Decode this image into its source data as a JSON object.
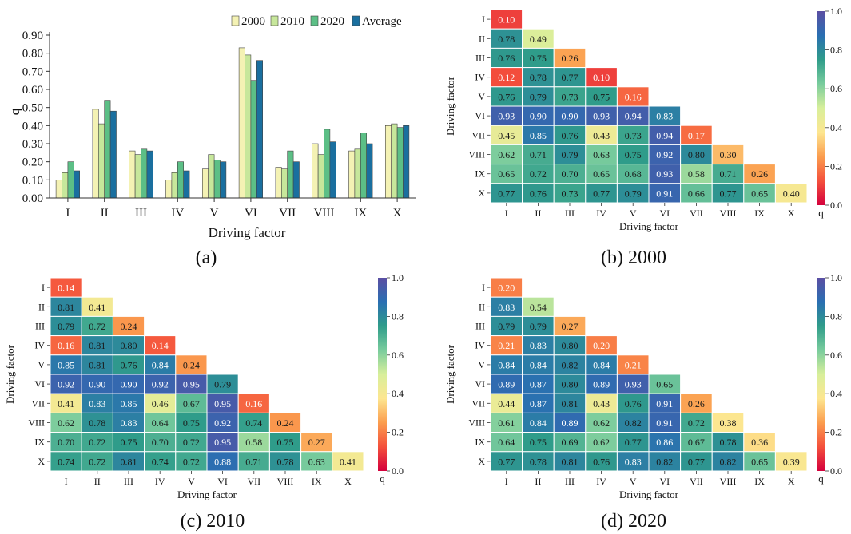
{
  "figure": {
    "panels": [
      {
        "label": "(a)"
      },
      {
        "label": "(b) 2000"
      },
      {
        "label": "(c) 2010"
      },
      {
        "label": "(d) 2020"
      }
    ]
  },
  "colors": {
    "y2000": "#f4f2b4",
    "y2010": "#c7e79b",
    "y2020": "#5cbf86",
    "average": "#1a6f9f",
    "colormap": [
      "#d4003c",
      "#f4503c",
      "#fb9d4e",
      "#fde690",
      "#d8ef9b",
      "#79cc9d",
      "#2f9c8a",
      "#2a6fb2",
      "#5b4ea3"
    ]
  },
  "chart_data": [
    {
      "type": "bar",
      "title": "",
      "xlabel": "Driving factor",
      "ylabel": "q",
      "ylim": [
        0,
        0.9
      ],
      "yticks": [
        "0.00",
        "0.10",
        "0.20",
        "0.30",
        "0.40",
        "0.50",
        "0.60",
        "0.70",
        "0.80",
        "0.90"
      ],
      "categories": [
        "I",
        "II",
        "III",
        "IV",
        "V",
        "VI",
        "VII",
        "VIII",
        "IX",
        "X"
      ],
      "legend": "top-right",
      "series": [
        {
          "name": "2000",
          "values": [
            0.1,
            0.49,
            0.26,
            0.1,
            0.16,
            0.83,
            0.17,
            0.3,
            0.26,
            0.4
          ]
        },
        {
          "name": "2010",
          "values": [
            0.14,
            0.41,
            0.24,
            0.14,
            0.24,
            0.79,
            0.16,
            0.24,
            0.27,
            0.41
          ]
        },
        {
          "name": "2020",
          "values": [
            0.2,
            0.54,
            0.27,
            0.2,
            0.21,
            0.65,
            0.26,
            0.38,
            0.36,
            0.39
          ]
        },
        {
          "name": "Average",
          "values": [
            0.15,
            0.48,
            0.26,
            0.15,
            0.2,
            0.76,
            0.2,
            0.31,
            0.3,
            0.4
          ]
        }
      ]
    },
    {
      "type": "heatmap",
      "title": "2000",
      "xlabel": "Driving factor",
      "ylabel": "Driving factor",
      "factors": [
        "I",
        "II",
        "III",
        "IV",
        "V",
        "VI",
        "VII",
        "VIII",
        "IX",
        "X"
      ],
      "colorbar_label": "q",
      "colorbar_range": [
        0.0,
        1.0
      ],
      "colorbar_ticks": [
        "0.0",
        "0.2",
        "0.4",
        "0.6",
        "0.8",
        "1.0"
      ],
      "rows": [
        [
          0.1
        ],
        [
          0.78,
          0.49
        ],
        [
          0.76,
          0.75,
          0.26
        ],
        [
          0.12,
          0.78,
          0.77,
          0.1
        ],
        [
          0.76,
          0.79,
          0.73,
          0.75,
          0.16
        ],
        [
          0.93,
          0.9,
          0.9,
          0.93,
          0.94,
          0.83
        ],
        [
          0.45,
          0.85,
          0.76,
          0.43,
          0.73,
          0.94,
          0.17
        ],
        [
          0.62,
          0.71,
          0.79,
          0.63,
          0.75,
          0.92,
          0.8,
          0.3
        ],
        [
          0.65,
          0.72,
          0.7,
          0.65,
          0.68,
          0.93,
          0.58,
          0.71,
          0.26
        ],
        [
          0.77,
          0.76,
          0.73,
          0.77,
          0.79,
          0.91,
          0.66,
          0.77,
          0.65,
          0.4
        ]
      ]
    },
    {
      "type": "heatmap",
      "title": "2010",
      "xlabel": "Driving factor",
      "ylabel": "Driving factor",
      "factors": [
        "I",
        "II",
        "III",
        "IV",
        "V",
        "VI",
        "VII",
        "VIII",
        "IX",
        "X"
      ],
      "colorbar_label": "q",
      "colorbar_range": [
        0.0,
        1.0
      ],
      "colorbar_ticks": [
        "0.0",
        "0.2",
        "0.4",
        "0.6",
        "0.8",
        "1.0"
      ],
      "rows": [
        [
          0.14
        ],
        [
          0.81,
          0.41
        ],
        [
          0.79,
          0.72,
          0.24
        ],
        [
          0.16,
          0.81,
          0.8,
          0.14
        ],
        [
          0.85,
          0.81,
          0.76,
          0.84,
          0.24
        ],
        [
          0.92,
          0.9,
          0.9,
          0.92,
          0.95,
          0.79
        ],
        [
          0.41,
          0.83,
          0.85,
          0.46,
          0.67,
          0.95,
          0.16
        ],
        [
          0.62,
          0.78,
          0.83,
          0.64,
          0.75,
          0.92,
          0.74,
          0.24
        ],
        [
          0.7,
          0.72,
          0.75,
          0.7,
          0.72,
          0.95,
          0.58,
          0.75,
          0.27
        ],
        [
          0.74,
          0.72,
          0.81,
          0.74,
          0.72,
          0.88,
          0.71,
          0.78,
          0.63,
          0.41
        ]
      ]
    },
    {
      "type": "heatmap",
      "title": "2020",
      "xlabel": "Driving factor",
      "ylabel": "Driving factor",
      "factors": [
        "I",
        "II",
        "III",
        "IV",
        "V",
        "VI",
        "VII",
        "VIII",
        "IX",
        "X"
      ],
      "colorbar_label": "q",
      "colorbar_range": [
        0.0,
        1.0
      ],
      "colorbar_ticks": [
        "0.0",
        "0.2",
        "0.4",
        "0.6",
        "0.8",
        "1.0"
      ],
      "rows": [
        [
          0.2
        ],
        [
          0.83,
          0.54
        ],
        [
          0.79,
          0.79,
          0.27
        ],
        [
          0.21,
          0.83,
          0.8,
          0.2
        ],
        [
          0.84,
          0.84,
          0.82,
          0.84,
          0.21
        ],
        [
          0.89,
          0.87,
          0.8,
          0.89,
          0.93,
          0.65
        ],
        [
          0.44,
          0.87,
          0.81,
          0.43,
          0.76,
          0.91,
          0.26
        ],
        [
          0.61,
          0.84,
          0.89,
          0.62,
          0.82,
          0.91,
          0.72,
          0.38
        ],
        [
          0.64,
          0.75,
          0.69,
          0.62,
          0.77,
          0.86,
          0.67,
          0.78,
          0.36
        ],
        [
          0.77,
          0.78,
          0.81,
          0.76,
          0.83,
          0.82,
          0.77,
          0.82,
          0.65,
          0.39
        ]
      ]
    }
  ]
}
